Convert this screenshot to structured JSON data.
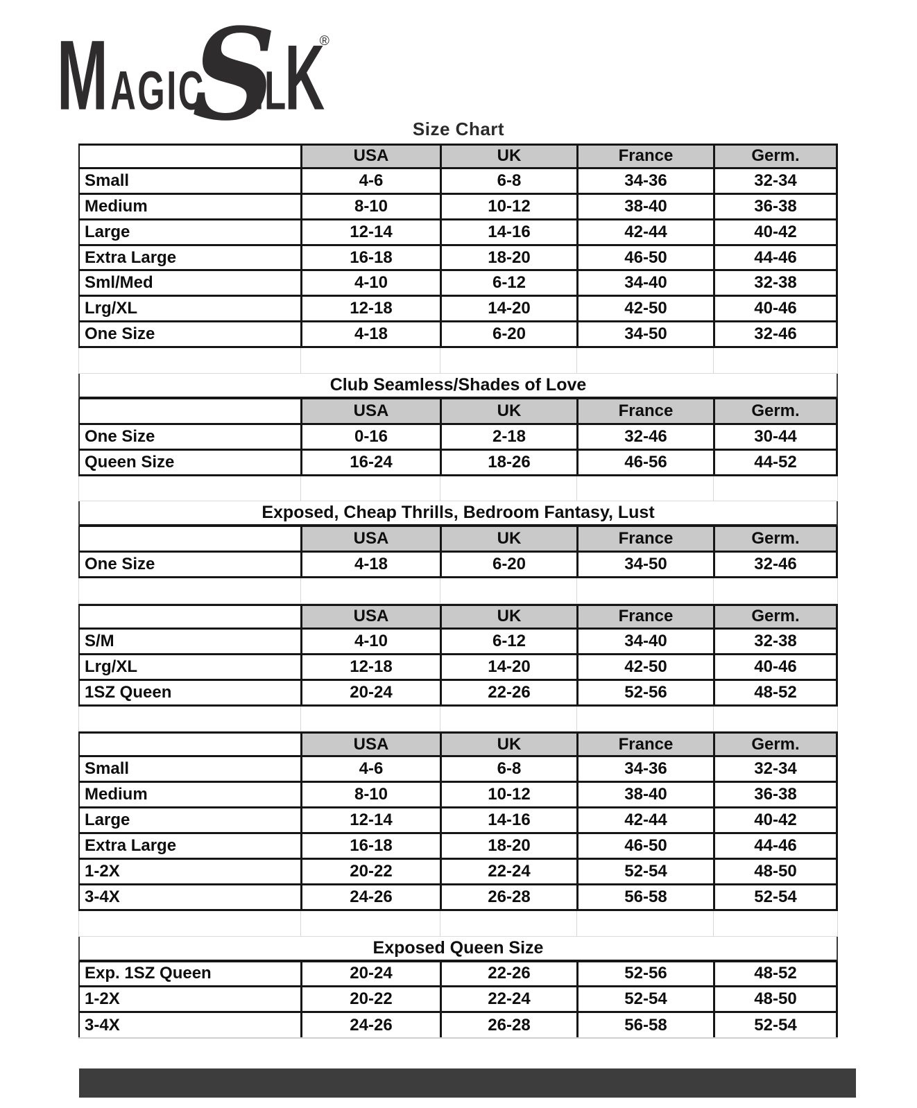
{
  "brand": {
    "name": "Magic Silk",
    "logo_m": "M",
    "logo_agic": "AGIC",
    "logo_s": "S",
    "logo_il": "IL",
    "logo_k": "K",
    "registered": "®"
  },
  "page_title": "Size Chart",
  "column_headers": [
    "USA",
    "UK",
    "France",
    "Germ."
  ],
  "sections": [
    {
      "title": "",
      "show_header": true,
      "rows": [
        [
          "Small",
          "4-6",
          "6-8",
          "34-36",
          "32-34"
        ],
        [
          "Medium",
          "8-10",
          "10-12",
          "38-40",
          "36-38"
        ],
        [
          "Large",
          "12-14",
          "14-16",
          "42-44",
          "40-42"
        ],
        [
          "Extra Large",
          "16-18",
          "18-20",
          "46-50",
          "44-46"
        ],
        [
          "Sml/Med",
          "4-10",
          "6-12",
          "34-40",
          "32-38"
        ],
        [
          "Lrg/XL",
          "12-18",
          "14-20",
          "42-50",
          "40-46"
        ],
        [
          "One Size",
          "4-18",
          "6-20",
          "34-50",
          "32-46"
        ]
      ]
    },
    {
      "title": "Club Seamless/Shades of Love",
      "show_header": true,
      "rows": [
        [
          "One Size",
          "0-16",
          "2-18",
          "32-46",
          "30-44"
        ],
        [
          "Queen Size",
          "16-24",
          "18-26",
          "46-56",
          "44-52"
        ]
      ]
    },
    {
      "title": "Exposed, Cheap Thrills, Bedroom Fantasy, Lust",
      "show_header": true,
      "rows": [
        [
          "One Size",
          "4-18",
          "6-20",
          "34-50",
          "32-46"
        ]
      ]
    },
    {
      "title": "",
      "show_header": true,
      "rows": [
        [
          "S/M",
          "4-10",
          "6-12",
          "34-40",
          "32-38"
        ],
        [
          "Lrg/XL",
          "12-18",
          "14-20",
          "42-50",
          "40-46"
        ],
        [
          "1SZ Queen",
          "20-24",
          "22-26",
          "52-56",
          "48-52"
        ]
      ]
    },
    {
      "title": "",
      "show_header": true,
      "rows": [
        [
          "Small",
          "4-6",
          "6-8",
          "34-36",
          "32-34"
        ],
        [
          "Medium",
          "8-10",
          "10-12",
          "38-40",
          "36-38"
        ],
        [
          "Large",
          "12-14",
          "14-16",
          "42-44",
          "40-42"
        ],
        [
          "Extra Large",
          "16-18",
          "18-20",
          "46-50",
          "44-46"
        ],
        [
          "1-2X",
          "20-22",
          "22-24",
          "52-54",
          "48-50"
        ],
        [
          "3-4X",
          "24-26",
          "26-28",
          "56-58",
          "52-54"
        ]
      ]
    },
    {
      "title": "Exposed Queen Size",
      "show_header": false,
      "rows": [
        [
          "Exp. 1SZ Queen",
          "20-24",
          "22-26",
          "52-56",
          "48-52"
        ],
        [
          "1-2X",
          "20-22",
          "22-24",
          "52-54",
          "48-50"
        ],
        [
          "3-4X",
          "24-26",
          "26-28",
          "56-58",
          "52-54"
        ]
      ]
    }
  ],
  "colors": {
    "header_bg": "#c9c9c9",
    "grid_black": "#161616",
    "grid_light": "#d8d8d8",
    "bottom_bar": "#3d3d3d",
    "logo": "#2f2c2d",
    "text": "#0e0e0e"
  }
}
